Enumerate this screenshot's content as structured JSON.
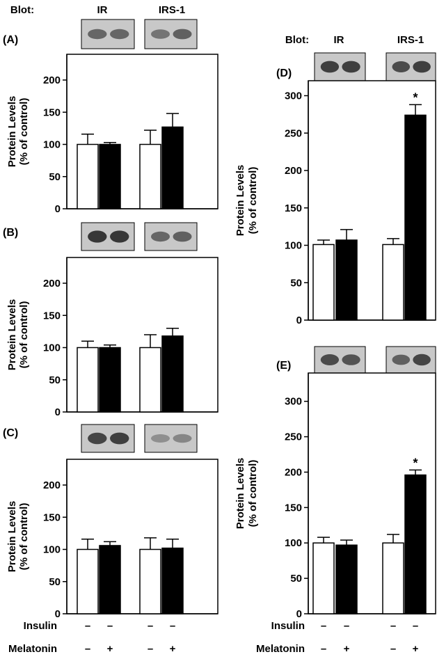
{
  "colors": {
    "control_bar": "#ffffff",
    "melatonin_bar": "#000000",
    "axis": "#000000",
    "blot_background": "#c8c8c8",
    "blot_band": "#2a2a2a"
  },
  "treatment_rows": {
    "insulin_label": "Insulin",
    "melatonin_label": "Melatonin",
    "insulin_signs": [
      "–",
      "–",
      "–",
      "–"
    ],
    "melatonin_signs": [
      "–",
      "+",
      "–",
      "+"
    ]
  },
  "chart_data": [
    {
      "id": "A",
      "panel_label": "(A)",
      "type": "bar",
      "blot_prefix": "Blot:",
      "categories": [
        "IR",
        "IRS-1"
      ],
      "ylabel_line1": "Protein Levels",
      "ylabel_line2": "(% of control)",
      "ylim": [
        0,
        240
      ],
      "yticks": [
        0,
        50,
        100,
        150,
        200
      ],
      "series": [
        {
          "values": [
            100,
            100
          ],
          "errors": [
            16,
            3
          ]
        },
        {
          "values": [
            100,
            127
          ],
          "errors": [
            22,
            21
          ]
        }
      ],
      "significance": [
        "",
        ""
      ],
      "blot_bands": [
        [
          0.55,
          0.55
        ],
        [
          0.45,
          0.6
        ]
      ]
    },
    {
      "id": "B",
      "panel_label": "(B)",
      "type": "bar",
      "blot_prefix": "",
      "categories": [
        "",
        ""
      ],
      "ylabel_line1": "Protein Levels",
      "ylabel_line2": "(% of control)",
      "ylim": [
        0,
        240
      ],
      "yticks": [
        0,
        50,
        100,
        150,
        200
      ],
      "series": [
        {
          "values": [
            100,
            100
          ],
          "errors": [
            10,
            4
          ]
        },
        {
          "values": [
            100,
            118
          ],
          "errors": [
            20,
            12
          ]
        }
      ],
      "significance": [
        "",
        ""
      ],
      "blot_bands": [
        [
          0.9,
          0.9
        ],
        [
          0.55,
          0.6
        ]
      ]
    },
    {
      "id": "C",
      "panel_label": "(C)",
      "type": "bar",
      "blot_prefix": "",
      "categories": [
        "",
        ""
      ],
      "ylabel_line1": "Protein Levels",
      "ylabel_line2": "(% of control)",
      "ylim": [
        0,
        240
      ],
      "yticks": [
        0,
        50,
        100,
        150,
        200
      ],
      "series": [
        {
          "values": [
            100,
            106
          ],
          "errors": [
            16,
            6
          ]
        },
        {
          "values": [
            100,
            102
          ],
          "errors": [
            18,
            14
          ]
        }
      ],
      "significance": [
        "",
        ""
      ],
      "blot_bands": [
        [
          0.8,
          0.85
        ],
        [
          0.25,
          0.3
        ]
      ]
    },
    {
      "id": "D",
      "panel_label": "(D)",
      "type": "bar",
      "blot_prefix": "Blot:",
      "categories": [
        "IR",
        "IRS-1"
      ],
      "ylabel_line1": "Protein Levels",
      "ylabel_line2": "(% of control)",
      "ylim": [
        0,
        320
      ],
      "yticks": [
        0,
        50,
        100,
        150,
        200,
        250,
        300
      ],
      "series": [
        {
          "values": [
            101,
            107
          ],
          "errors": [
            6,
            14
          ]
        },
        {
          "values": [
            101,
            274
          ],
          "errors": [
            8,
            14
          ]
        }
      ],
      "significance": [
        "",
        "*"
      ],
      "blot_bands": [
        [
          0.85,
          0.85
        ],
        [
          0.75,
          0.85
        ]
      ]
    },
    {
      "id": "E",
      "panel_label": "(E)",
      "type": "bar",
      "blot_prefix": "",
      "categories": [
        "",
        ""
      ],
      "ylabel_line1": "Protein Levels",
      "ylabel_line2": "(% of control)",
      "ylim": [
        0,
        340
      ],
      "yticks": [
        0,
        50,
        100,
        150,
        200,
        250,
        300
      ],
      "series": [
        {
          "values": [
            100,
            97
          ],
          "errors": [
            8,
            7
          ]
        },
        {
          "values": [
            100,
            196
          ],
          "errors": [
            12,
            7
          ]
        }
      ],
      "significance": [
        "",
        "*"
      ],
      "blot_bands": [
        [
          0.75,
          0.7
        ],
        [
          0.6,
          0.8
        ]
      ]
    }
  ]
}
